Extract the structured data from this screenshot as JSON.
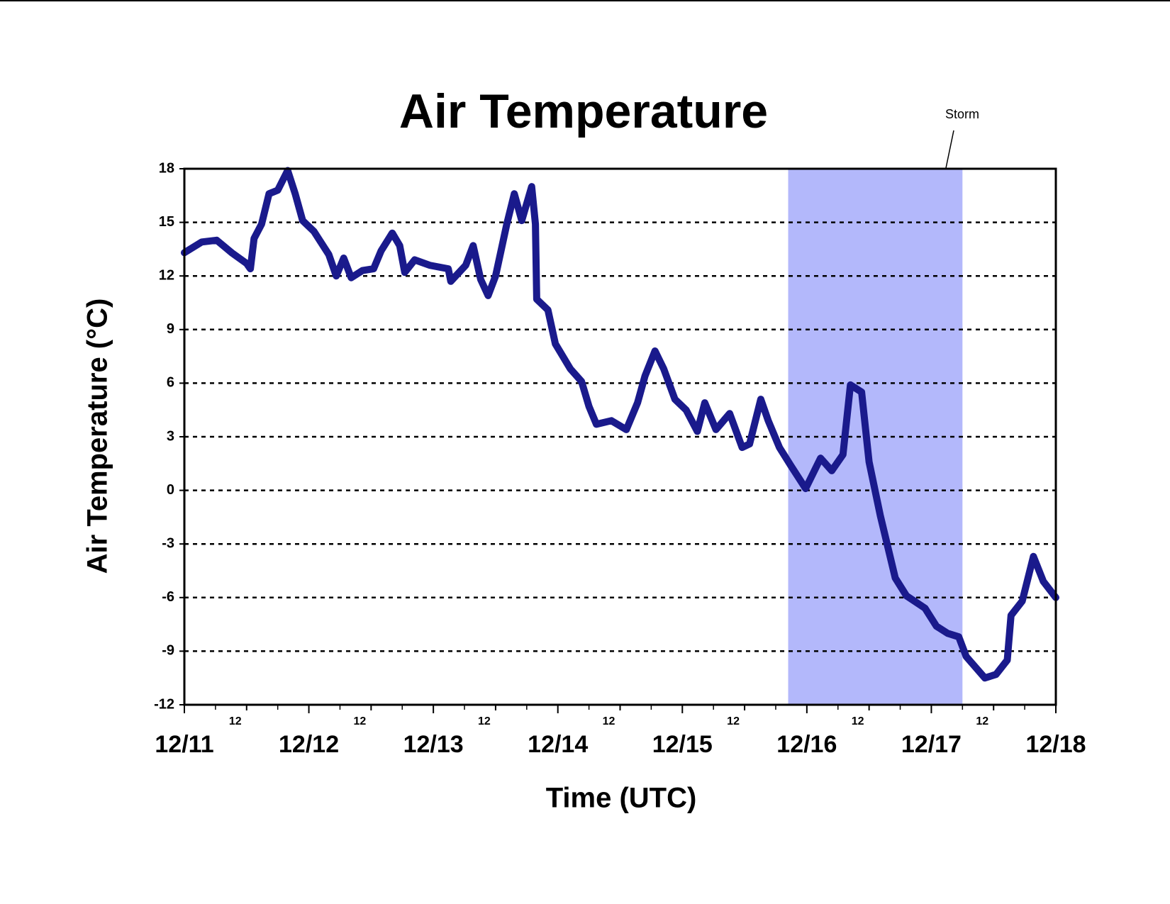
{
  "chart_data": {
    "type": "line",
    "title": "Air Temperature",
    "xlabel": "Time (UTC)",
    "ylabel": "Air Temperature (°C)",
    "x": [
      0,
      0.14,
      0.26,
      0.38,
      0.5,
      0.53,
      0.56,
      0.62,
      0.68,
      0.75,
      0.83,
      0.89,
      0.95,
      1.04,
      1.16,
      1.22,
      1.28,
      1.34,
      1.43,
      1.52,
      1.58,
      1.67,
      1.73,
      1.77,
      1.85,
      1.97,
      2.12,
      2.14,
      2.26,
      2.32,
      2.38,
      2.44,
      2.5,
      2.59,
      2.65,
      2.71,
      2.79,
      2.82,
      2.83,
      2.92,
      2.98,
      3.1,
      3.19,
      3.25,
      3.31,
      3.43,
      3.55,
      3.64,
      3.7,
      3.78,
      3.85,
      3.94,
      4.03,
      4.12,
      4.18,
      4.27,
      4.38,
      4.48,
      4.54,
      4.63,
      4.69,
      4.78,
      4.87,
      4.99,
      5.11,
      5.2,
      5.29,
      5.35,
      5.44,
      5.5,
      5.59,
      5.71,
      5.8,
      5.95,
      6.04,
      6.13,
      6.22,
      6.28,
      6.43,
      6.52,
      6.61,
      6.64,
      6.73,
      6.82,
      6.9,
      7
    ],
    "values": [
      13.3,
      13.9,
      14,
      13.3,
      12.7,
      12.4,
      14.1,
      14.9,
      16.6,
      16.8,
      17.9,
      16.6,
      15.1,
      14.5,
      13.2,
      12,
      13,
      11.9,
      12.3,
      12.4,
      13.4,
      14.4,
      13.7,
      12.2,
      12.9,
      12.6,
      12.4,
      11.7,
      12.6,
      13.7,
      11.8,
      10.9,
      12,
      14.9,
      16.6,
      15.1,
      17,
      14.9,
      10.7,
      10.1,
      8.2,
      6.8,
      6.1,
      4.7,
      3.7,
      3.9,
      3.4,
      4.9,
      6.4,
      7.8,
      6.8,
      5.1,
      4.5,
      3.3,
      4.9,
      3.4,
      4.3,
      2.4,
      2.6,
      5.1,
      3.9,
      2.4,
      1.4,
      0.1,
      1.8,
      1.1,
      2,
      5.9,
      5.5,
      1.6,
      -1.4,
      -4.9,
      -5.9,
      -6.6,
      -7.6,
      -8,
      -8.2,
      -9.3,
      -10.5,
      -10.3,
      -9.5,
      -7,
      -6.2,
      -3.7,
      -5.1,
      -6
    ],
    "color": "#1a1a8c",
    "xlim": [
      0,
      7
    ],
    "xticks": [
      {
        "value": 0,
        "label": "12/11"
      },
      {
        "value": 0.5,
        "label": "12"
      },
      {
        "value": 1,
        "label": "12/12"
      },
      {
        "value": 1.5,
        "label": "12"
      },
      {
        "value": 2,
        "label": "12/13"
      },
      {
        "value": 2.5,
        "label": "12"
      },
      {
        "value": 3,
        "label": "12/14"
      },
      {
        "value": 3.5,
        "label": "12"
      },
      {
        "value": 4,
        "label": "12/15"
      },
      {
        "value": 4.5,
        "label": "12"
      },
      {
        "value": 5,
        "label": "12/16"
      },
      {
        "value": 5.5,
        "label": "12"
      },
      {
        "value": 6,
        "label": "12/17"
      },
      {
        "value": 6.5,
        "label": "12"
      },
      {
        "value": 7,
        "label": "12/18"
      }
    ],
    "xminorticks": [
      0.25,
      0.75,
      1.25,
      1.75,
      2.25,
      2.75,
      3.25,
      3.75,
      4.25,
      4.75,
      5.25,
      5.75,
      6.25,
      6.75
    ],
    "ylim": [
      -12,
      18
    ],
    "yticks": [
      -12,
      -9,
      -6,
      -3,
      0,
      3,
      6,
      9,
      12,
      15,
      18
    ],
    "grid": true,
    "storm": {
      "label": "Storm",
      "xrange": [
        4.85,
        6.25
      ],
      "color": "#b3b8fb"
    }
  }
}
